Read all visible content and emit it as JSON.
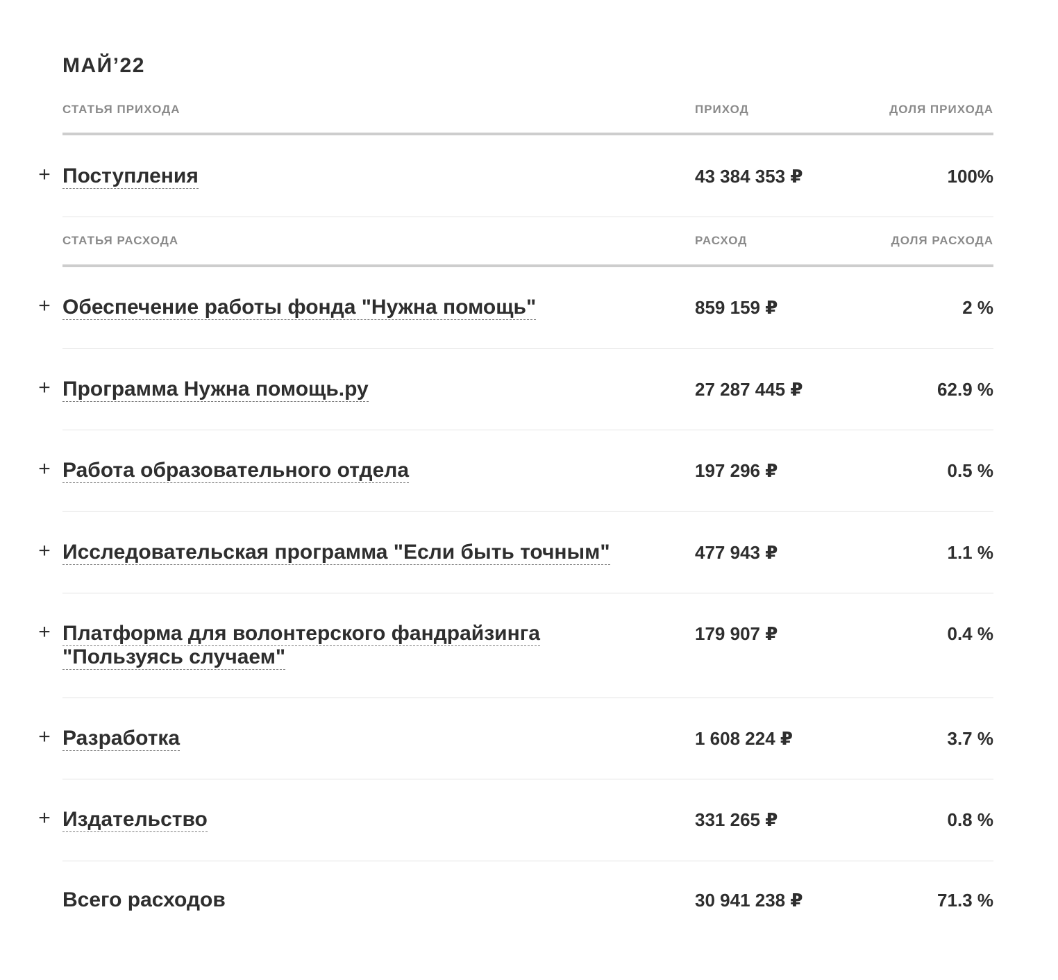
{
  "period_title": "МАЙ’22",
  "income_headers": {
    "item": "СТАТЬЯ ПРИХОДА",
    "amount": "ПРИХОД",
    "share": "ДОЛЯ ПРИХОДА"
  },
  "income_rows": [
    {
      "label": "Поступления",
      "amount": "43 384 353 ₽",
      "share": "100%",
      "expand": "+"
    }
  ],
  "expense_headers": {
    "item": "СТАТЬЯ РАСХОДА",
    "amount": "РАСХОД",
    "share": "ДОЛЯ РАСХОДА"
  },
  "expense_rows": [
    {
      "label": "Обеспечение работы фонда \"Нужна помощь\"",
      "amount": "859 159 ₽",
      "share": "2 %",
      "expand": "+"
    },
    {
      "label": "Программа Нужна помощь.ру",
      "amount": "27 287 445 ₽",
      "share": "62.9 %",
      "expand": "+"
    },
    {
      "label": "Работа образовательного отдела",
      "amount": "197 296 ₽",
      "share": "0.5 %",
      "expand": "+"
    },
    {
      "label": "Исследовательская программа \"Если быть точным\"",
      "amount": "477 943 ₽",
      "share": "1.1 %",
      "expand": "+"
    },
    {
      "label": "Платформа для волонтерского фандрайзинга \"Пользуясь случаем\"",
      "amount": "179 907 ₽",
      "share": "0.4 %",
      "expand": "+"
    },
    {
      "label": "Разработка",
      "amount": "1 608 224 ₽",
      "share": "3.7 %",
      "expand": "+"
    },
    {
      "label": "Издательство",
      "amount": "331 265 ₽",
      "share": "0.8 %",
      "expand": "+"
    }
  ],
  "total": {
    "label": "Всего расходов",
    "amount": "30 941 238 ₽",
    "share": "71.3 %"
  }
}
